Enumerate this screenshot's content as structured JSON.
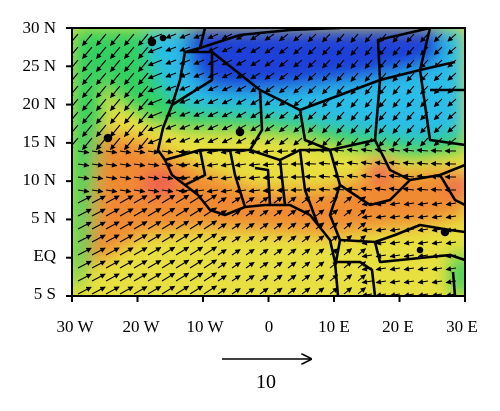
{
  "map": {
    "y_tick_labels": [
      "30 N",
      "25 N",
      "20 N",
      "15 N",
      "10 N",
      "5 N",
      "EQ",
      "5 S"
    ],
    "x_tick_labels": [
      "30 W",
      "20 W",
      "10 W",
      "0",
      "10 E",
      "20 E",
      "30 E"
    ],
    "lon_range": [
      -30,
      30
    ],
    "lat_range": [
      -5,
      30
    ],
    "field_colors": {
      "blue": "#1e3fd8",
      "cyan": "#2bbde8",
      "green": "#30d060",
      "yellow": "#e8e040",
      "orange": "#f08a30",
      "red": "#f04858"
    },
    "reference_vector": {
      "label": "10"
    }
  }
}
